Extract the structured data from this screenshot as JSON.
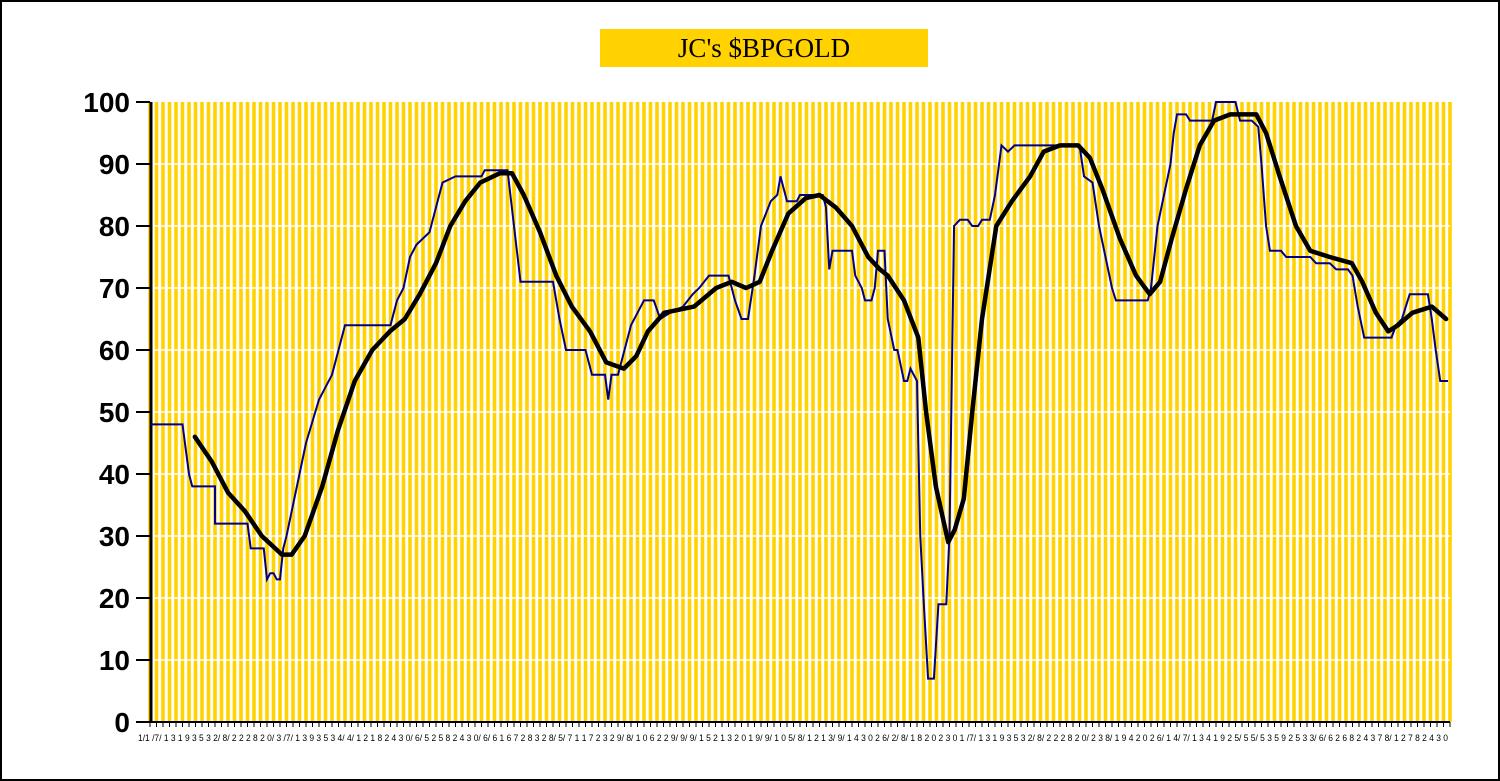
{
  "chart_data": {
    "type": "line",
    "title": "JC's $BPGOLD",
    "xlabel": "",
    "ylabel": "",
    "ylim": [
      0,
      100
    ],
    "yticks": [
      0,
      10,
      20,
      30,
      40,
      50,
      60,
      70,
      80,
      90,
      100
    ],
    "x_tick_labels_text": "1/1 /7/ 1 3 1 9 3 5 3 2/ 8/ 2 2 2 8 2 0/ 3 /7/ 1 3 9 3 5 3 4/ 4/ 1 2 1 8 2 4 3 0/ 6/ 5 2 5 8 2 4 3 0/ 6/ 6 1 6 7 2 8 3 2 8/ 5/ 7 1 1 7 2 3 2 9/ 8/ 1 0 6 2 2 9/ 9/ 9/ 1 5 2 1 3 2 0 1 9/ 9/ 1 0 5/ 8/ 1 2 1 3/ 9/ 1 4 3 0 2 6/ 2/ 8/ 1 8 2 0 2 3 0 1 /7/ 1 3 1 9 3 5 3 2/ 8/ 2 2 2 8 2 0/ 2 3 8/ 1 9 4 2 0 2 6/ 1 4/ 7/ 1 3 4 1 9 2 5/ 5 5/ 5 3 5 9 2 5 3 3/ 6/ 6 2 6 8 2 4 3 7 8/ 1 2 7 8 2 4 3 0",
    "category_count": 200,
    "grid": {
      "vertical": true,
      "horizontal": true
    },
    "colors": {
      "background": "#FFD200",
      "grid_horizontal": "#FFFFFF",
      "series_raw": "#00008B",
      "series_smooth": "#000000"
    },
    "series": [
      {
        "style": "thin-blue-step",
        "points": [
          [
            0,
            48
          ],
          [
            5,
            48
          ],
          [
            6,
            40
          ],
          [
            6.5,
            38
          ],
          [
            10,
            38
          ],
          [
            10,
            32
          ],
          [
            15,
            32
          ],
          [
            15.5,
            28
          ],
          [
            17.5,
            28
          ],
          [
            18,
            23
          ],
          [
            18.5,
            24
          ],
          [
            19,
            24
          ],
          [
            19.5,
            23
          ],
          [
            20,
            23
          ],
          [
            20.5,
            28
          ],
          [
            21,
            30
          ],
          [
            22,
            35
          ],
          [
            23,
            40
          ],
          [
            24,
            45
          ],
          [
            26,
            52
          ],
          [
            27,
            54
          ],
          [
            28,
            56
          ],
          [
            29,
            60
          ],
          [
            30,
            64
          ],
          [
            37,
            64
          ],
          [
            38,
            68
          ],
          [
            39,
            70
          ],
          [
            40,
            75
          ],
          [
            41,
            77
          ],
          [
            43,
            79
          ],
          [
            44,
            83
          ],
          [
            45,
            87
          ],
          [
            47,
            88
          ],
          [
            51,
            88
          ],
          [
            51.5,
            89
          ],
          [
            55,
            89
          ],
          [
            57,
            71
          ],
          [
            62,
            71
          ],
          [
            63,
            65
          ],
          [
            64,
            60
          ],
          [
            67,
            60
          ],
          [
            68,
            56
          ],
          [
            70,
            56
          ],
          [
            70.5,
            52
          ],
          [
            71,
            56
          ],
          [
            72,
            56
          ],
          [
            73,
            60
          ],
          [
            74,
            64
          ],
          [
            75,
            66
          ],
          [
            76,
            68
          ],
          [
            77.5,
            68
          ],
          [
            78.5,
            65
          ],
          [
            80,
            66
          ],
          [
            82,
            67
          ],
          [
            83.5,
            69
          ],
          [
            84.5,
            70
          ],
          [
            86,
            72
          ],
          [
            89,
            72
          ],
          [
            90,
            68
          ],
          [
            91,
            65
          ],
          [
            92,
            65
          ],
          [
            93,
            72
          ],
          [
            94,
            80
          ],
          [
            95.5,
            84
          ],
          [
            96.5,
            85
          ],
          [
            97,
            88
          ],
          [
            98,
            84
          ],
          [
            99.5,
            84
          ],
          [
            100,
            85
          ],
          [
            103.5,
            85
          ],
          [
            104,
            83
          ],
          [
            104.5,
            73
          ],
          [
            105,
            76
          ],
          [
            108,
            76
          ],
          [
            108.5,
            72
          ],
          [
            109.5,
            70
          ],
          [
            110,
            68
          ],
          [
            111,
            68
          ],
          [
            111.5,
            70
          ],
          [
            112,
            76
          ],
          [
            113,
            76
          ],
          [
            113.5,
            65
          ],
          [
            114.5,
            60
          ],
          [
            115,
            60
          ],
          [
            116,
            55
          ],
          [
            116.5,
            55
          ],
          [
            117,
            57
          ],
          [
            118,
            55
          ],
          [
            118.5,
            30
          ],
          [
            119,
            20
          ],
          [
            119.7,
            7
          ],
          [
            120.6,
            7
          ],
          [
            121.3,
            19
          ],
          [
            122.5,
            19
          ],
          [
            123,
            30
          ],
          [
            123.7,
            80
          ],
          [
            124.6,
            81
          ],
          [
            125.8,
            81
          ],
          [
            126.5,
            80
          ],
          [
            127.4,
            80
          ],
          [
            128,
            81
          ],
          [
            129.2,
            81
          ],
          [
            130,
            85
          ],
          [
            131,
            93
          ],
          [
            132,
            92
          ],
          [
            133,
            93
          ],
          [
            143,
            93
          ],
          [
            143.7,
            88
          ],
          [
            145,
            87
          ],
          [
            146,
            80
          ],
          [
            147,
            75
          ],
          [
            148,
            70
          ],
          [
            148.6,
            68
          ],
          [
            153.5,
            68
          ],
          [
            154,
            70
          ],
          [
            154.5,
            75
          ],
          [
            155,
            80
          ],
          [
            156,
            85
          ],
          [
            157,
            90
          ],
          [
            157.5,
            95
          ],
          [
            158,
            98
          ],
          [
            159.4,
            98
          ],
          [
            160,
            97
          ],
          [
            163.4,
            97
          ],
          [
            164,
            100
          ],
          [
            167,
            100
          ],
          [
            167.7,
            97
          ],
          [
            169.5,
            97
          ],
          [
            170.5,
            96
          ],
          [
            171,
            90
          ],
          [
            171.7,
            80
          ],
          [
            172.3,
            76
          ],
          [
            174,
            76
          ],
          [
            174.8,
            75
          ],
          [
            178.5,
            75
          ],
          [
            179.4,
            74
          ],
          [
            181.5,
            74
          ],
          [
            182.5,
            73
          ],
          [
            184.3,
            73
          ],
          [
            185,
            72
          ],
          [
            185.8,
            67
          ],
          [
            186.8,
            62
          ],
          [
            191,
            62
          ],
          [
            191.7,
            64
          ],
          [
            192.6,
            65
          ],
          [
            193.2,
            67
          ],
          [
            193.8,
            69
          ],
          [
            196.6,
            69
          ],
          [
            197.2,
            65
          ],
          [
            197.8,
            60
          ],
          [
            198.5,
            55
          ],
          [
            199.7,
            55
          ]
        ]
      },
      {
        "style": "thick-black-smooth",
        "points": [
          [
            6.9,
            46
          ],
          [
            9.5,
            42
          ],
          [
            12,
            37
          ],
          [
            14.6,
            34
          ],
          [
            17.2,
            30
          ],
          [
            20.3,
            27
          ],
          [
            21.8,
            27
          ],
          [
            23.8,
            30
          ],
          [
            26.5,
            38
          ],
          [
            28.9,
            47
          ],
          [
            31.5,
            55
          ],
          [
            34.2,
            60
          ],
          [
            36.9,
            63
          ],
          [
            39.2,
            65
          ],
          [
            41.5,
            69
          ],
          [
            44,
            74
          ],
          [
            46.2,
            80
          ],
          [
            48.5,
            84
          ],
          [
            50.8,
            87
          ],
          [
            53.8,
            88.5
          ],
          [
            55.7,
            88.5
          ],
          [
            57.5,
            85
          ],
          [
            60,
            79
          ],
          [
            62.5,
            72
          ],
          [
            64.9,
            67
          ],
          [
            67.7,
            63
          ],
          [
            70.2,
            58
          ],
          [
            72.9,
            57
          ],
          [
            74.8,
            59
          ],
          [
            76.6,
            63
          ],
          [
            79.1,
            66
          ],
          [
            83.7,
            67
          ],
          [
            87.1,
            70
          ],
          [
            89.5,
            71
          ],
          [
            91.7,
            70
          ],
          [
            93.8,
            71
          ],
          [
            95.7,
            76
          ],
          [
            98.2,
            82
          ],
          [
            100.9,
            84.5
          ],
          [
            103,
            85
          ],
          [
            105.5,
            83
          ],
          [
            108,
            80
          ],
          [
            110.5,
            75
          ],
          [
            112.3,
            73
          ],
          [
            113.5,
            72
          ],
          [
            116,
            68
          ],
          [
            118.2,
            62
          ],
          [
            119.4,
            50
          ],
          [
            120.9,
            38
          ],
          [
            122.8,
            29
          ],
          [
            123.8,
            31
          ],
          [
            125.2,
            36
          ],
          [
            126.5,
            50
          ],
          [
            128,
            65
          ],
          [
            130.2,
            80
          ],
          [
            132.6,
            84
          ],
          [
            135.4,
            88
          ],
          [
            137.5,
            92
          ],
          [
            140,
            93
          ],
          [
            142.8,
            93
          ],
          [
            144.6,
            91
          ],
          [
            146.5,
            86
          ],
          [
            149.2,
            78
          ],
          [
            151.7,
            72
          ],
          [
            153.8,
            69
          ],
          [
            155.4,
            71
          ],
          [
            157.2,
            78
          ],
          [
            159.4,
            86
          ],
          [
            161.5,
            93
          ],
          [
            163.7,
            97
          ],
          [
            166.2,
            98
          ],
          [
            170.2,
            98
          ],
          [
            171.7,
            95
          ],
          [
            173.8,
            88
          ],
          [
            176.3,
            80
          ],
          [
            178.5,
            76
          ],
          [
            181.5,
            75
          ],
          [
            184.9,
            74
          ],
          [
            186.5,
            71
          ],
          [
            188.6,
            66
          ],
          [
            190.5,
            63
          ],
          [
            192,
            64
          ],
          [
            194.2,
            66
          ],
          [
            197.2,
            67
          ],
          [
            199.4,
            65
          ]
        ]
      }
    ]
  }
}
